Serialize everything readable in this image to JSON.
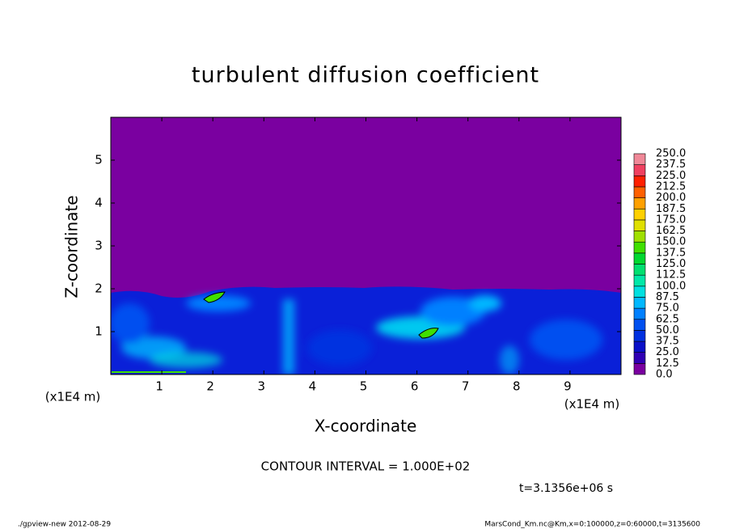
{
  "chart_data": {
    "type": "contour",
    "title": "turbulent diffusion coefficient",
    "x_label": "X-coordinate",
    "y_label": "Z-coordinate",
    "x_unit": "(x1E4 m)",
    "y_unit": "(x1E4 m)",
    "xlim": [
      0,
      10
    ],
    "ylim": [
      0,
      6
    ],
    "xticks": [
      1,
      2,
      3,
      4,
      5,
      6,
      7,
      8,
      9
    ],
    "yticks": [
      1,
      2,
      3,
      4,
      5
    ],
    "colorbar": {
      "levels": [
        {
          "value": 0,
          "label": "0.0"
        },
        {
          "value": 12.5,
          "label": "12.5"
        },
        {
          "value": 25,
          "label": "25.0"
        },
        {
          "value": 37.5,
          "label": "37.5"
        },
        {
          "value": 50,
          "label": "50.0"
        },
        {
          "value": 62.5,
          "label": "62.5"
        },
        {
          "value": 75,
          "label": "75.0"
        },
        {
          "value": 87.5,
          "label": "87.5"
        },
        {
          "value": 100,
          "label": "100.0"
        },
        {
          "value": 112.5,
          "label": "112.5"
        },
        {
          "value": 125,
          "label": "125.0"
        },
        {
          "value": 137.5,
          "label": "137.5"
        },
        {
          "value": 150,
          "label": "150.0"
        },
        {
          "value": 162.5,
          "label": "162.5"
        },
        {
          "value": 175,
          "label": "175.0"
        },
        {
          "value": 187.5,
          "label": "187.5"
        },
        {
          "value": 200,
          "label": "200.0"
        },
        {
          "value": 212.5,
          "label": "212.5"
        },
        {
          "value": 225,
          "label": "225.0"
        },
        {
          "value": 237.5,
          "label": "237.5"
        },
        {
          "value": 250,
          "label": "250.0"
        }
      ],
      "colors": [
        "#7a00a0",
        "#3000b4",
        "#0a10c8",
        "#0030e0",
        "#0050f0",
        "#0080ff",
        "#00b8ff",
        "#00e0e0",
        "#00e8a8",
        "#00e070",
        "#00d830",
        "#40e000",
        "#a0e000",
        "#e0e000",
        "#ffd000",
        "#ffa000",
        "#ff6000",
        "#ff2000",
        "#f04060",
        "#f08898"
      ]
    },
    "contour_interval": "CONTOUR INTERVAL = 1.000E+02",
    "time_label": "t=3.1356e+06 s",
    "footer_left": "./gpview-new  2012-08-29",
    "footer_right": "MarsCond_Km.nc@Km,x=0:100000,z=0:60000,t=3135600"
  }
}
